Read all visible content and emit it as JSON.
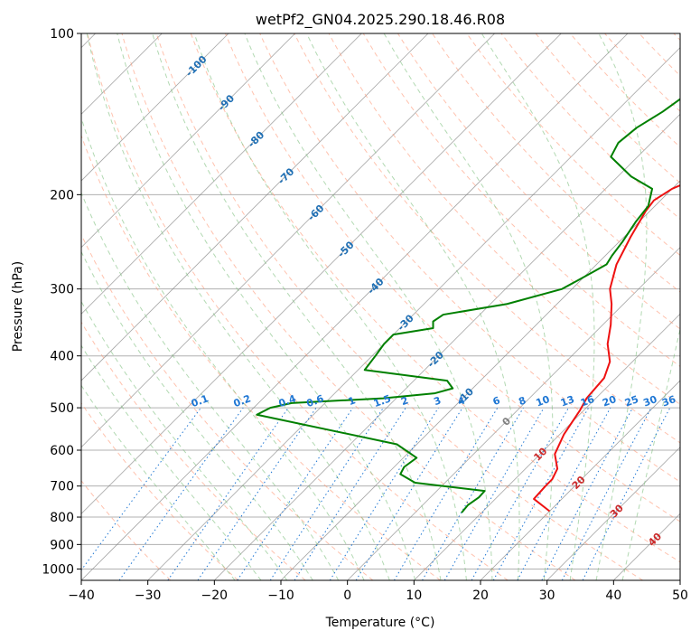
{
  "chart_data": {
    "type": "line",
    "subtype": "skew-t log-p diagram",
    "title": "wetPf2_GN04.2025.290.18.46.R08",
    "xlabel": "Temperature (°C)",
    "ylabel": "Pressure (hPa)",
    "xlim": [
      -40,
      50
    ],
    "ylim": [
      1050,
      100
    ],
    "x_ticks": [
      -40,
      -30,
      -20,
      -10,
      0,
      10,
      20,
      30,
      40,
      50
    ],
    "x_tick_labels": [
      "−40",
      "−30",
      "−20",
      "−10",
      "0",
      "10",
      "20",
      "30",
      "40",
      "50"
    ],
    "y_ticks": [
      100,
      200,
      300,
      400,
      500,
      600,
      700,
      800,
      900,
      1000
    ],
    "y_tick_labels": [
      "100",
      "200",
      "300",
      "400",
      "500",
      "600",
      "700",
      "800",
      "900",
      "1000"
    ],
    "colors": {
      "temperature": "#ee1111",
      "dewpoint": "#008000",
      "isotherm": "#808080",
      "dry_adiabat": "#ff9a78",
      "moist_adiabat": "#7fbf7f",
      "mixing_ratio": "#1f77d4",
      "grid": "#b0b0b0",
      "frame": "#000000"
    },
    "series": [
      {
        "name": "Temperature",
        "color": "#ee1111",
        "points": [
          [
            20.0,
            780
          ],
          [
            15.8,
            740
          ],
          [
            15.6,
            700
          ],
          [
            15.6,
            680
          ],
          [
            14.8,
            650
          ],
          [
            12.2,
            610
          ],
          [
            10.6,
            560
          ],
          [
            9.4,
            505
          ],
          [
            8.6,
            480
          ],
          [
            8.2,
            440
          ],
          [
            6.6,
            410
          ],
          [
            3.6,
            380
          ],
          [
            1.2,
            350
          ],
          [
            -1.8,
            320
          ],
          [
            -4.3,
            300
          ],
          [
            -7.0,
            270
          ],
          [
            -9.0,
            240
          ],
          [
            -10.6,
            215
          ],
          [
            -11.0,
            205
          ],
          [
            -10.0,
            195
          ],
          [
            -7.5,
            185
          ],
          [
            -4.8,
            170
          ],
          [
            -2.5,
            160
          ],
          [
            -1.0,
            150
          ],
          [
            -0.5,
            140
          ],
          [
            -1.0,
            130
          ],
          [
            -2.0,
            120
          ],
          [
            -3.0,
            110
          ],
          [
            -4.0,
            100
          ]
        ]
      },
      {
        "name": "Dewpoint",
        "color": "#008000",
        "points": [
          [
            7.0,
            785
          ],
          [
            6.8,
            760
          ],
          [
            7.3,
            735
          ],
          [
            7.2,
            715
          ],
          [
            -4.5,
            690
          ],
          [
            -8.0,
            665
          ],
          [
            -8.5,
            645
          ],
          [
            -8.0,
            620
          ],
          [
            -13.0,
            585
          ],
          [
            -38.5,
            515
          ],
          [
            -37.5,
            500
          ],
          [
            -35.0,
            490
          ],
          [
            -22.0,
            480
          ],
          [
            -15.0,
            470
          ],
          [
            -13.0,
            460
          ],
          [
            -15.0,
            445
          ],
          [
            -29.0,
            425
          ],
          [
            -29.5,
            400
          ],
          [
            -30.0,
            380
          ],
          [
            -30.0,
            365
          ],
          [
            -25.0,
            355
          ],
          [
            -26.0,
            345
          ],
          [
            -25.5,
            335
          ],
          [
            -17.5,
            320
          ],
          [
            -11.5,
            300
          ],
          [
            -9.5,
            280
          ],
          [
            -8.5,
            270
          ],
          [
            -9.0,
            260
          ],
          [
            -9.5,
            245
          ],
          [
            -10.5,
            225
          ],
          [
            -11.0,
            210
          ],
          [
            -13.0,
            195
          ],
          [
            -18.0,
            185
          ],
          [
            -24.0,
            170
          ],
          [
            -25.0,
            160
          ],
          [
            -24.5,
            150
          ],
          [
            -23.0,
            140
          ],
          [
            -22.0,
            130
          ],
          [
            -22.5,
            120
          ],
          [
            -24.0,
            110
          ],
          [
            -26.0,
            100
          ]
        ]
      }
    ],
    "isotherm_labels": [
      {
        "value": -100,
        "text": "-100"
      },
      {
        "value": -90,
        "text": "-90"
      },
      {
        "value": -80,
        "text": "-80"
      },
      {
        "value": -70,
        "text": "-70"
      },
      {
        "value": -60,
        "text": "-60"
      },
      {
        "value": -50,
        "text": "-50"
      },
      {
        "value": -40,
        "text": "-40"
      },
      {
        "value": -30,
        "text": "-30"
      },
      {
        "value": -20,
        "text": "-20"
      },
      {
        "value": -10,
        "text": "-10"
      },
      {
        "value": 0,
        "text": "0"
      },
      {
        "value": 10,
        "text": "10"
      },
      {
        "value": 20,
        "text": "20"
      },
      {
        "value": 30,
        "text": "30"
      },
      {
        "value": 40,
        "text": "40"
      }
    ],
    "mixing_ratio_lines_g_per_kg": [
      0.1,
      0.2,
      0.4,
      0.6,
      1,
      1.5,
      2,
      3,
      4,
      6,
      8,
      10,
      13,
      16,
      20,
      25,
      30,
      36
    ],
    "mixing_ratio_labels": [
      "0.1",
      "0.2",
      "0.4",
      "0.6",
      "1",
      "1.5",
      "2",
      "3",
      "4",
      "6",
      "8",
      "10",
      "13",
      "16",
      "20",
      "25",
      "30",
      "36"
    ],
    "mixing_ratio_label_pressure": 500,
    "mixing_ratio_top_pressure": 500
  }
}
